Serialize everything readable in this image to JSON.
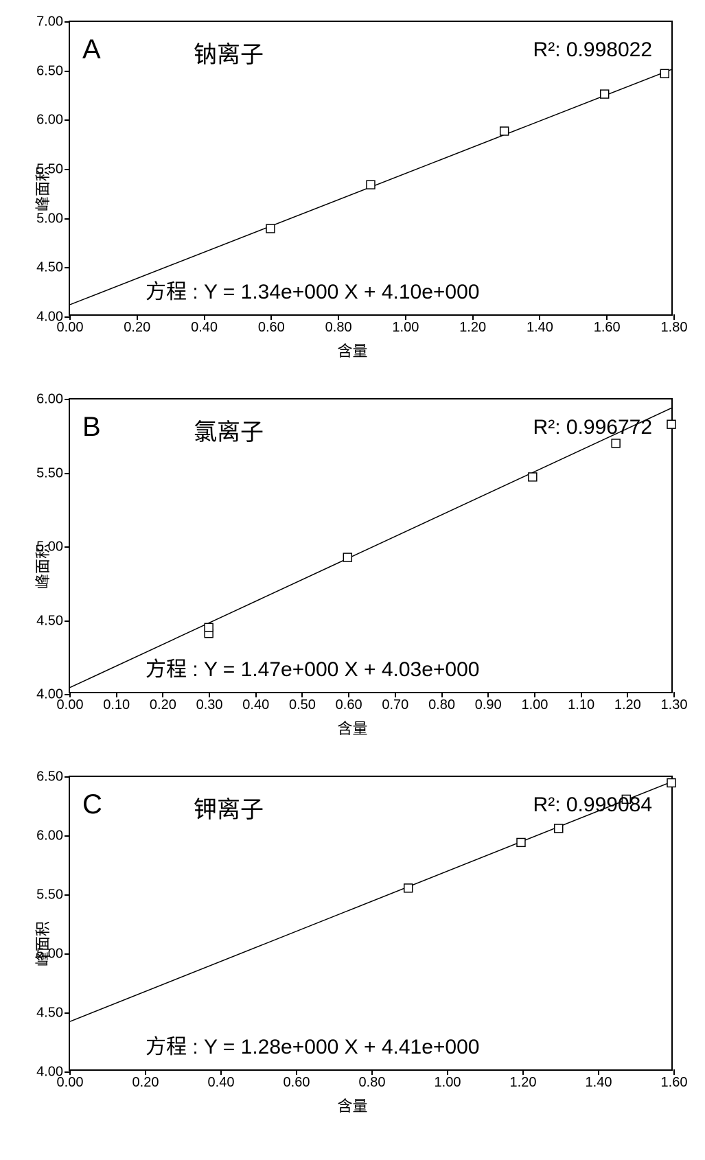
{
  "global": {
    "background_color": "#ffffff",
    "axis_color": "#000000",
    "marker_stroke": "#000000",
    "marker_fill": "#ffffff",
    "line_color": "#000000",
    "label_fontsize_title": 34,
    "label_fontsize_panel": 40,
    "label_fontsize_axis": 22,
    "label_fontsize_tick": 20,
    "label_fontsize_r2": 30,
    "label_fontsize_eq": 30,
    "marker_size": 12,
    "line_width": 1.5,
    "border_width": 2,
    "y_axis_label": "峰面积",
    "x_axis_label": "含量"
  },
  "panels": [
    {
      "letter": "A",
      "title": "钠离子",
      "r2_text": "R²: 0.998022",
      "equation_text": "方程 : Y = 1.34e+000 X + 4.10e+000",
      "xlim": [
        0.0,
        1.8
      ],
      "ylim": [
        4.0,
        7.0
      ],
      "xticks": [
        0.0,
        0.2,
        0.4,
        0.6,
        0.8,
        1.0,
        1.2,
        1.4,
        1.6,
        1.8
      ],
      "yticks": [
        4.0,
        4.5,
        5.0,
        5.5,
        6.0,
        6.5,
        7.0
      ],
      "xtick_labels": [
        "0.00",
        "0.20",
        "0.40",
        "0.60",
        "0.80",
        "1.00",
        "1.20",
        "1.40",
        "1.60",
        "1.80"
      ],
      "ytick_labels": [
        "4.00",
        "4.50",
        "5.00",
        "5.50",
        "6.00",
        "6.50",
        "7.00"
      ],
      "slope": 1.34,
      "intercept": 4.1,
      "points": [
        {
          "x": 0.6,
          "y": 4.88
        },
        {
          "x": 0.9,
          "y": 5.33
        },
        {
          "x": 1.3,
          "y": 5.88
        },
        {
          "x": 1.6,
          "y": 6.26
        },
        {
          "x": 1.78,
          "y": 6.47
        }
      ]
    },
    {
      "letter": "B",
      "title": "氯离子",
      "r2_text": "R²: 0.996772",
      "equation_text": "方程 : Y = 1.47e+000 X + 4.03e+000",
      "xlim": [
        0.0,
        1.3
      ],
      "ylim": [
        4.0,
        6.0
      ],
      "xticks": [
        0.0,
        0.1,
        0.2,
        0.3,
        0.4,
        0.5,
        0.6,
        0.7,
        0.8,
        0.9,
        1.0,
        1.1,
        1.2,
        1.3
      ],
      "yticks": [
        4.0,
        4.5,
        5.0,
        5.5,
        6.0
      ],
      "xtick_labels": [
        "0.00",
        "0.10",
        "0.20",
        "0.30",
        "0.40",
        "0.50",
        "0.60",
        "0.70",
        "0.80",
        "0.90",
        "1.00",
        "1.10",
        "1.20",
        "1.30"
      ],
      "ytick_labels": [
        "4.00",
        "4.50",
        "5.00",
        "5.50",
        "6.00"
      ],
      "slope": 1.47,
      "intercept": 4.03,
      "points": [
        {
          "x": 0.3,
          "y": 4.4
        },
        {
          "x": 0.3,
          "y": 4.44
        },
        {
          "x": 0.6,
          "y": 4.92
        },
        {
          "x": 1.0,
          "y": 5.47
        },
        {
          "x": 1.18,
          "y": 5.7
        },
        {
          "x": 1.3,
          "y": 5.83
        }
      ]
    },
    {
      "letter": "C",
      "title": "钾离子",
      "r2_text": "R²: 0.999084",
      "equation_text": "方程 : Y = 1.28e+000 X + 4.41e+000",
      "xlim": [
        0.0,
        1.6
      ],
      "ylim": [
        4.0,
        6.5
      ],
      "xticks": [
        0.0,
        0.2,
        0.4,
        0.6,
        0.8,
        1.0,
        1.2,
        1.4,
        1.6
      ],
      "yticks": [
        4.0,
        4.5,
        5.0,
        5.5,
        6.0,
        6.5
      ],
      "xtick_labels": [
        "0.00",
        "0.20",
        "0.40",
        "0.60",
        "0.80",
        "1.00",
        "1.20",
        "1.40",
        "1.60"
      ],
      "ytick_labels": [
        "4.00",
        "4.50",
        "5.00",
        "5.50",
        "6.00",
        "6.50"
      ],
      "slope": 1.28,
      "intercept": 4.41,
      "points": [
        {
          "x": 0.9,
          "y": 5.55
        },
        {
          "x": 1.2,
          "y": 5.94
        },
        {
          "x": 1.3,
          "y": 6.06
        },
        {
          "x": 1.48,
          "y": 6.31
        },
        {
          "x": 1.6,
          "y": 6.45
        }
      ]
    }
  ]
}
